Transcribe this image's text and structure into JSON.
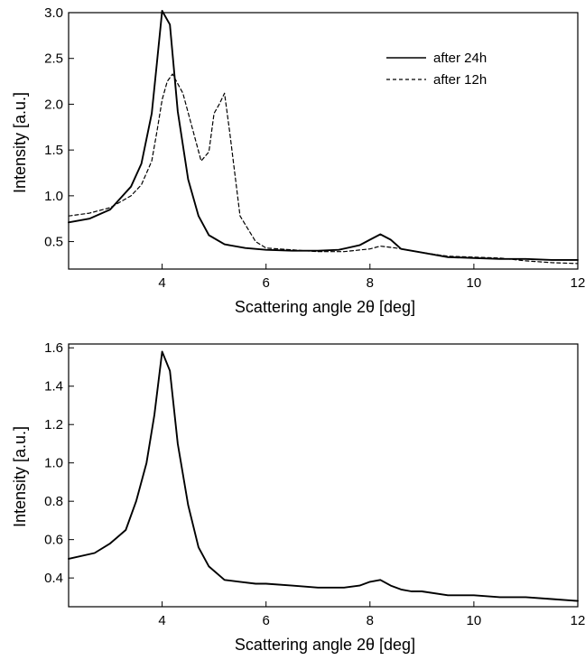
{
  "chart_data": [
    {
      "type": "line",
      "title": "",
      "xlabel": "Scattering angle 2θ  [deg]",
      "ylabel": "Intensity [a.u.]",
      "xlim": [
        2.2,
        12
      ],
      "ylim": [
        0.2,
        3.0
      ],
      "xticks": [
        4,
        6,
        8,
        10,
        12
      ],
      "yticks": [
        0.5,
        1.0,
        1.5,
        2.0,
        2.5,
        3.0
      ],
      "ytick_labels": [
        "0.5",
        "1.0",
        "1.5",
        "2.0",
        "2.5",
        "3.0"
      ],
      "grid": false,
      "legend_position": "top-right",
      "series": [
        {
          "name": "after 24h",
          "style": "solid",
          "color": "#000000",
          "x": [
            2.2,
            2.6,
            3.0,
            3.4,
            3.6,
            3.8,
            3.9,
            4.0,
            4.15,
            4.3,
            4.5,
            4.7,
            4.9,
            5.2,
            5.6,
            6.0,
            6.5,
            7.0,
            7.4,
            7.8,
            8.0,
            8.2,
            8.4,
            8.6,
            9.0,
            9.5,
            10.0,
            10.5,
            11.0,
            11.5,
            12.0
          ],
          "y": [
            0.71,
            0.75,
            0.85,
            1.1,
            1.35,
            1.9,
            2.45,
            3.02,
            2.87,
            1.92,
            1.18,
            0.78,
            0.57,
            0.47,
            0.43,
            0.41,
            0.4,
            0.4,
            0.41,
            0.46,
            0.52,
            0.58,
            0.52,
            0.42,
            0.38,
            0.33,
            0.32,
            0.31,
            0.31,
            0.3,
            0.3
          ]
        },
        {
          "name": "after 12h",
          "style": "dashed",
          "color": "#000000",
          "x": [
            2.2,
            2.6,
            3.0,
            3.4,
            3.6,
            3.8,
            3.9,
            4.0,
            4.1,
            4.2,
            4.4,
            4.6,
            4.75,
            4.9,
            5.0,
            5.1,
            5.2,
            5.3,
            5.5,
            5.8,
            6.0,
            6.5,
            7.0,
            7.5,
            8.0,
            8.2,
            8.5,
            9.0,
            9.5,
            10.0,
            10.5,
            11.0,
            11.5,
            12.0
          ],
          "y": [
            0.78,
            0.81,
            0.87,
            1.0,
            1.12,
            1.38,
            1.7,
            2.05,
            2.25,
            2.33,
            2.12,
            1.7,
            1.38,
            1.48,
            1.9,
            2.0,
            2.12,
            1.7,
            0.78,
            0.5,
            0.43,
            0.41,
            0.39,
            0.39,
            0.42,
            0.45,
            0.43,
            0.38,
            0.34,
            0.33,
            0.32,
            0.29,
            0.27,
            0.26
          ]
        }
      ]
    },
    {
      "type": "line",
      "title": "",
      "xlabel": "Scattering angle 2θ  [deg]",
      "ylabel": "Intensity [a.u.]",
      "xlim": [
        2.2,
        12
      ],
      "ylim": [
        0.25,
        1.62
      ],
      "xticks": [
        4,
        6,
        8,
        10,
        12
      ],
      "yticks": [
        0.4,
        0.6,
        0.8,
        1.0,
        1.2,
        1.4,
        1.6
      ],
      "ytick_labels": [
        "0.4",
        "0.6",
        "0.8",
        "1.0",
        "1.2",
        "1.4",
        "1.6"
      ],
      "grid": false,
      "series": [
        {
          "style": "solid",
          "color": "#000000",
          "x": [
            2.2,
            2.7,
            3.0,
            3.3,
            3.5,
            3.7,
            3.85,
            4.0,
            4.15,
            4.3,
            4.5,
            4.7,
            4.9,
            5.2,
            5.5,
            5.8,
            6.0,
            6.5,
            7.0,
            7.5,
            7.8,
            8.0,
            8.2,
            8.4,
            8.6,
            8.8,
            9.0,
            9.5,
            10.0,
            10.5,
            11.0,
            11.5,
            12.0
          ],
          "y": [
            0.5,
            0.53,
            0.58,
            0.65,
            0.8,
            1.0,
            1.25,
            1.58,
            1.48,
            1.1,
            0.78,
            0.56,
            0.46,
            0.39,
            0.38,
            0.37,
            0.37,
            0.36,
            0.35,
            0.35,
            0.36,
            0.38,
            0.39,
            0.36,
            0.34,
            0.33,
            0.33,
            0.31,
            0.31,
            0.3,
            0.3,
            0.29,
            0.28
          ]
        }
      ]
    }
  ]
}
